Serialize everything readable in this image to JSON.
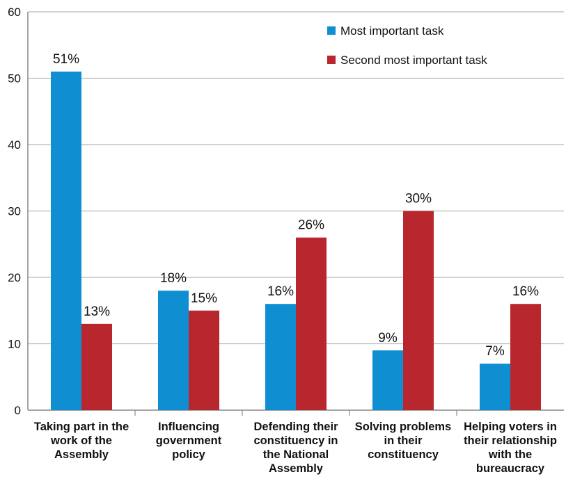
{
  "chart_data": {
    "type": "bar",
    "categories": [
      "Taking part in the work of the Assembly",
      "Influencing government policy",
      "Defending their constituency in the National Assembly",
      "Solving problems in their constituency",
      "Helping voters in their relationship with the bureaucracy"
    ],
    "category_lines": [
      [
        "Taking part in the",
        "work of the",
        "Assembly"
      ],
      [
        "Influencing",
        "government",
        "policy"
      ],
      [
        "Defending their",
        "constituency in",
        "the National",
        "Assembly"
      ],
      [
        "Solving problems",
        "in their",
        "constituency"
      ],
      [
        "Helping voters in",
        "their relationship",
        "with the",
        "bureaucracy"
      ]
    ],
    "series": [
      {
        "name": "Most important task",
        "color": "#0f8fd2",
        "values": [
          51,
          18,
          16,
          9,
          7
        ],
        "labels": [
          "51%",
          "18%",
          "16%",
          "9%",
          "7%"
        ]
      },
      {
        "name": "Second most important task",
        "color": "#b8262e",
        "values": [
          13,
          15,
          26,
          30,
          16
        ],
        "labels": [
          "13%",
          "15%",
          "26%",
          "30%",
          "16%"
        ]
      }
    ],
    "ylim": [
      0,
      60
    ],
    "yticks": [
      0,
      10,
      20,
      30,
      40,
      50,
      60
    ],
    "grid": true,
    "legend_position": "top-right"
  }
}
